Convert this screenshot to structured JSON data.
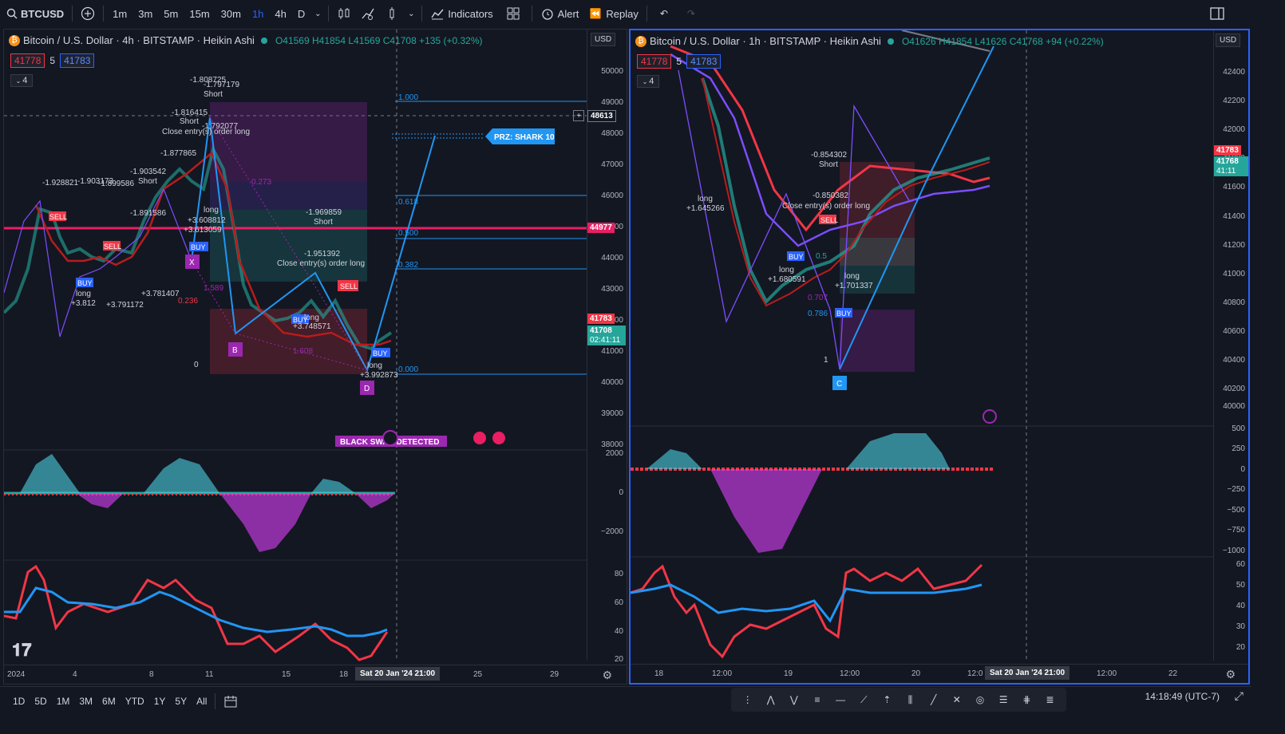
{
  "toolbar": {
    "symbol": "BTCUSD",
    "timeframes": [
      "1m",
      "3m",
      "5m",
      "15m",
      "30m",
      "1h",
      "4h",
      "D"
    ],
    "active_timeframe": "1h",
    "indicators_label": "Indicators",
    "alert_label": "Alert",
    "replay_label": "Replay"
  },
  "left_chart": {
    "title": "Bitcoin / U.S. Dollar · 4h · BITSTAMP · Heikin Ashi",
    "ohlc": "O41569 H41854 L41569 C41708 +135 (+0.32%)",
    "bid": "41778",
    "spread": "5",
    "ask": "41783",
    "collapse_count": "4",
    "currency": "USD",
    "price_ticks": [
      "50000",
      "49000",
      "48000",
      "47000",
      "46000",
      "45000",
      "44000",
      "43000",
      "42000",
      "41000",
      "40000",
      "39000",
      "38000"
    ],
    "osc_ticks": [
      "2000",
      "0",
      "−2000"
    ],
    "rsi_ticks": [
      "80",
      "60",
      "40",
      "20"
    ],
    "crosshair_price": "48613",
    "level_price": "44977",
    "ask_tag": "41783",
    "last_tag": "41708",
    "countdown": "02:41:11",
    "time_ticks": [
      "2024",
      "4",
      "8",
      "11",
      "15",
      "18",
      "25",
      "29"
    ],
    "time_highlight": "Sat 20 Jan '24   21:00",
    "fib_levels": [
      "1.000",
      "0.618",
      "0.500",
      "0.382",
      "0.000"
    ],
    "prz_label": "PRZ: SHARK 10",
    "black_swan": "BLACK SWAN DETECTED",
    "pattern_points": [
      "X",
      "B",
      "D"
    ],
    "sell_labels": [
      "SELL",
      "SELL",
      "SELL"
    ],
    "buy_labels": [
      "BUY",
      "BUY",
      "BUY",
      "BUY"
    ],
    "annotations": [
      "-1.808725",
      "-1.797179",
      "Short",
      "-1.816415",
      "Short",
      "-1.792077",
      "Close entry(s) order long",
      "-1.877865",
      "-1.903542",
      "Short",
      "-1.928821",
      "-1.903173",
      "-1.899586",
      "-1.891586",
      "long",
      "+3.608812",
      "+3.613059",
      "long",
      "+3.812",
      "+3.791172",
      "+3.781407",
      "-1.969859",
      "Short",
      "-1.951392",
      "Close entry(s) order long",
      "long",
      "+3.748571",
      "long",
      "+3.992873",
      "0.236",
      "1.589",
      "1.608",
      "0.273",
      "0"
    ]
  },
  "right_chart": {
    "title": "Bitcoin / U.S. Dollar · 1h · BITSTAMP · Heikin Ashi",
    "ohlc": "O41626 H41854 L41626 C41768 +94 (+0.22%)",
    "bid": "41778",
    "spread": "5",
    "ask": "41783",
    "collapse_count": "4",
    "currency": "USD",
    "price_ticks": [
      "42400",
      "42200",
      "42000",
      "41800",
      "41600",
      "41400",
      "41200",
      "41000",
      "40800",
      "40600",
      "40400",
      "40200",
      "40000"
    ],
    "osc_ticks": [
      "500",
      "250",
      "0",
      "−250",
      "−500",
      "−750",
      "−1000"
    ],
    "rsi_ticks": [
      "60",
      "50",
      "40",
      "30",
      "20"
    ],
    "ask_tag": "41783",
    "last_tag": "41768",
    "countdown": "41:11",
    "time_ticks": [
      "18",
      "12:00",
      "19",
      "12:00",
      "20",
      "12:0",
      "12:00",
      "22"
    ],
    "time_highlight": "Sat 20 Jan '24   21:00",
    "pattern_points": [
      "C"
    ],
    "annotations": [
      "long",
      "+1.645266",
      "-0.854302",
      "Short",
      "-0.850382",
      "Close entry(s) order long",
      "long",
      "+1.680591",
      "long",
      "+1.701337",
      "0.707",
      "0.786",
      "1",
      "0.5"
    ]
  },
  "bottom": {
    "ranges": [
      "1D",
      "5D",
      "1M",
      "3M",
      "6M",
      "YTD",
      "1Y",
      "5Y",
      "All"
    ],
    "clock": "14:18:49 (UTC-7)"
  },
  "colors": {
    "bg": "#131722",
    "up": "#26a69a",
    "down": "#f23645",
    "accent": "#2962ff",
    "purple": "#9c27b0"
  }
}
